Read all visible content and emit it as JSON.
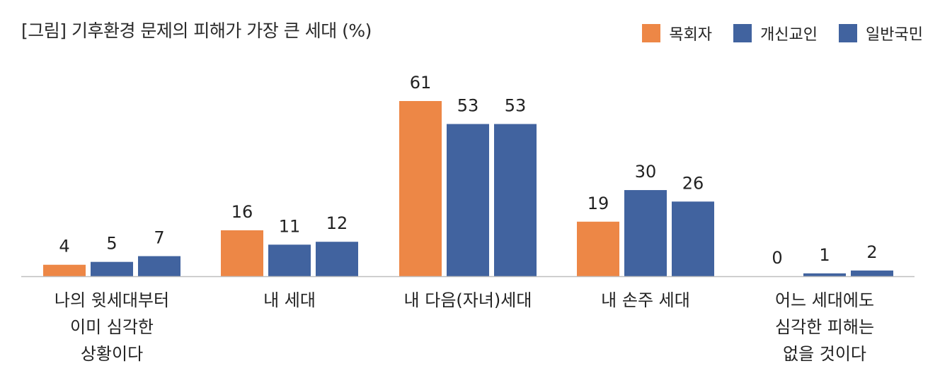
{
  "chart_data": {
    "type": "bar",
    "title": "[그림] 기후환경 문제의 피해가 가장 큰 세대 (%)",
    "categories": [
      "나의 윗세대부터\n이미 심각한\n상황이다",
      "내 세대",
      "내 다음(자녀)세대",
      "내 손주 세대",
      "어느 세대에도\n심각한 피해는\n없을 것이다"
    ],
    "series": [
      {
        "name": "목회자",
        "color": "#ED8746",
        "values": [
          4,
          16,
          61,
          19,
          0
        ]
      },
      {
        "name": "개신교인",
        "color": "#41639F",
        "values": [
          5,
          11,
          53,
          30,
          1
        ]
      },
      {
        "name": "일반국민",
        "color": "#41639F",
        "values": [
          7,
          12,
          53,
          26,
          2
        ]
      }
    ],
    "ylim": [
      0,
      70
    ],
    "grid": false,
    "legend_position": "top-right",
    "data_labels": true
  }
}
